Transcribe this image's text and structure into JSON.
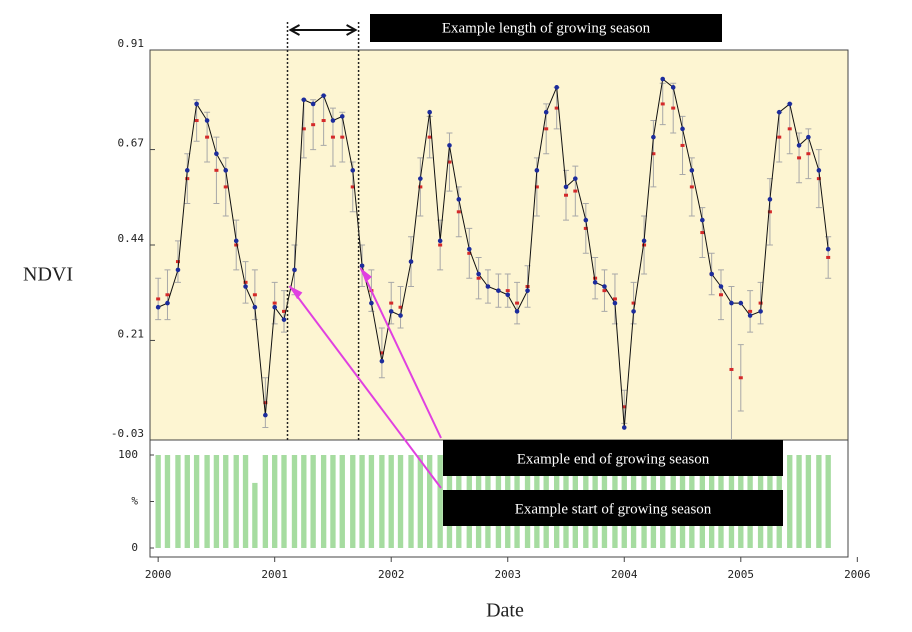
{
  "chart_data": [
    {
      "type": "line",
      "y_label": "NDVI",
      "x": [
        2000.0,
        2000.08,
        2000.17,
        2000.25,
        2000.33,
        2000.42,
        2000.5,
        2000.58,
        2000.67,
        2000.75,
        2000.83,
        2000.92,
        2001.0,
        2001.08,
        2001.17,
        2001.25,
        2001.33,
        2001.42,
        2001.5,
        2001.58,
        2001.67,
        2001.75,
        2001.83,
        2001.92,
        2002.0,
        2002.08,
        2002.17,
        2002.25,
        2002.33,
        2002.42,
        2002.5,
        2002.58,
        2002.67,
        2002.75,
        2002.83,
        2002.92,
        2003.0,
        2003.08,
        2003.17,
        2003.25,
        2003.33,
        2003.42,
        2003.5,
        2003.58,
        2003.67,
        2003.75,
        2003.83,
        2003.92,
        2004.0,
        2004.08,
        2004.17,
        2004.25,
        2004.33,
        2004.42,
        2004.5,
        2004.58,
        2004.67,
        2004.75,
        2004.83,
        2004.92,
        2005.0,
        2005.08,
        2005.17,
        2005.25,
        2005.33,
        2005.42,
        2005.5,
        2005.58,
        2005.67,
        2005.75
      ],
      "series": [
        {
          "color": "#1c2c9c",
          "values": [
            0.29,
            0.3,
            0.38,
            0.62,
            0.78,
            0.74,
            0.66,
            0.62,
            0.45,
            0.34,
            0.29,
            0.03,
            0.29,
            0.26,
            0.38,
            0.79,
            0.78,
            0.8,
            0.74,
            0.75,
            0.62,
            0.39,
            0.3,
            0.16,
            0.28,
            0.27,
            0.4,
            0.6,
            0.76,
            0.45,
            0.68,
            0.55,
            0.43,
            0.37,
            0.34,
            0.33,
            0.32,
            0.28,
            0.33,
            0.62,
            0.76,
            0.82,
            0.58,
            0.6,
            0.5,
            0.35,
            0.34,
            0.3,
            0.0,
            0.28,
            0.45,
            0.7,
            0.84,
            0.82,
            0.72,
            0.62,
            0.5,
            0.37,
            0.34,
            0.3,
            0.3,
            0.27,
            0.28,
            0.55,
            0.76,
            0.78,
            0.68,
            0.7,
            0.62,
            0.43
          ]
        },
        {
          "color": "#d42a2a",
          "error_color": "#a8a8a8",
          "values": [
            0.31,
            0.32,
            0.4,
            0.6,
            0.74,
            0.7,
            0.62,
            0.58,
            0.44,
            0.35,
            0.32,
            0.06,
            0.3,
            0.28,
            0.38,
            0.72,
            0.73,
            0.74,
            0.7,
            0.7,
            0.58,
            0.39,
            0.33,
            0.18,
            0.3,
            0.29,
            0.4,
            0.58,
            0.7,
            0.44,
            0.64,
            0.52,
            0.42,
            0.36,
            0.34,
            0.33,
            0.33,
            0.3,
            0.34,
            0.58,
            0.72,
            0.77,
            0.56,
            0.57,
            0.48,
            0.36,
            0.33,
            0.31,
            0.05,
            0.3,
            0.44,
            0.66,
            0.78,
            0.77,
            0.68,
            0.58,
            0.47,
            0.37,
            0.32,
            0.14,
            0.12,
            0.28,
            0.3,
            0.52,
            0.7,
            0.72,
            0.65,
            0.66,
            0.6,
            0.41
          ],
          "errors": [
            0.05,
            0.06,
            0.05,
            0.06,
            0.05,
            0.06,
            0.08,
            0.07,
            0.06,
            0.05,
            0.06,
            0.06,
            0.05,
            0.05,
            0.06,
            0.07,
            0.06,
            0.06,
            0.07,
            0.06,
            0.06,
            0.05,
            0.05,
            0.06,
            0.05,
            0.05,
            0.06,
            0.07,
            0.05,
            0.06,
            0.07,
            0.06,
            0.06,
            0.05,
            0.04,
            0.04,
            0.04,
            0.05,
            0.05,
            0.07,
            0.06,
            0.05,
            0.06,
            0.06,
            0.06,
            0.05,
            0.05,
            0.06,
            0.04,
            0.05,
            0.07,
            0.08,
            0.05,
            0.06,
            0.07,
            0.07,
            0.06,
            0.05,
            0.06,
            0.2,
            0.08,
            0.05,
            0.05,
            0.08,
            0.06,
            0.06,
            0.06,
            0.06,
            0.07,
            0.05
          ]
        }
      ],
      "xlim": [
        1999.93,
        2005.92
      ],
      "ylim": [
        -0.03,
        0.91
      ],
      "yticks": [
        -0.03,
        0.21,
        0.44,
        0.67,
        0.91
      ],
      "annotations": [
        {
          "text": "Example length of growing season",
          "x": [
            2001.11,
            2001.72
          ]
        },
        {
          "text": "Example end of growing season"
        },
        {
          "text": "Example start of growing season"
        }
      ]
    },
    {
      "type": "bar",
      "x_label": "Date",
      "x": [
        2000.0,
        2000.08,
        2000.17,
        2000.25,
        2000.33,
        2000.42,
        2000.5,
        2000.58,
        2000.67,
        2000.75,
        2000.83,
        2000.92,
        2001.0,
        2001.08,
        2001.17,
        2001.25,
        2001.33,
        2001.42,
        2001.5,
        2001.58,
        2001.67,
        2001.75,
        2001.83,
        2001.92,
        2002.0,
        2002.08,
        2002.17,
        2002.25,
        2002.33,
        2002.42,
        2002.5,
        2002.58,
        2002.67,
        2002.75,
        2002.83,
        2002.92,
        2003.0,
        2003.08,
        2003.17,
        2003.25,
        2003.33,
        2003.42,
        2003.5,
        2003.58,
        2003.67,
        2003.75,
        2003.83,
        2003.92,
        2004.0,
        2004.08,
        2004.17,
        2004.25,
        2004.33,
        2004.42,
        2004.5,
        2004.58,
        2004.67,
        2004.75,
        2004.83,
        2004.92,
        2005.0,
        2005.08,
        2005.17,
        2005.25,
        2005.33,
        2005.42,
        2005.5,
        2005.58,
        2005.67,
        2005.75
      ],
      "values": [
        100,
        100,
        100,
        100,
        100,
        100,
        100,
        100,
        100,
        100,
        70,
        100,
        100,
        100,
        100,
        100,
        100,
        100,
        100,
        100,
        100,
        100,
        100,
        100,
        100,
        100,
        100,
        100,
        100,
        100,
        100,
        100,
        100,
        100,
        100,
        100,
        100,
        100,
        100,
        100,
        100,
        100,
        100,
        100,
        100,
        100,
        100,
        100,
        100,
        100,
        100,
        100,
        100,
        100,
        100,
        100,
        100,
        100,
        100,
        100,
        100,
        100,
        100,
        100,
        100,
        100,
        100,
        100,
        100,
        100
      ],
      "color": "#a6dca0",
      "xlim": [
        1999.93,
        2005.92
      ],
      "ylim": [
        0,
        100
      ],
      "yticks": [
        0,
        {
          "value": 50,
          "label": "%"
        },
        100
      ],
      "xticks": [
        2000,
        2001,
        2002,
        2003,
        2004,
        2005,
        2006
      ]
    }
  ]
}
